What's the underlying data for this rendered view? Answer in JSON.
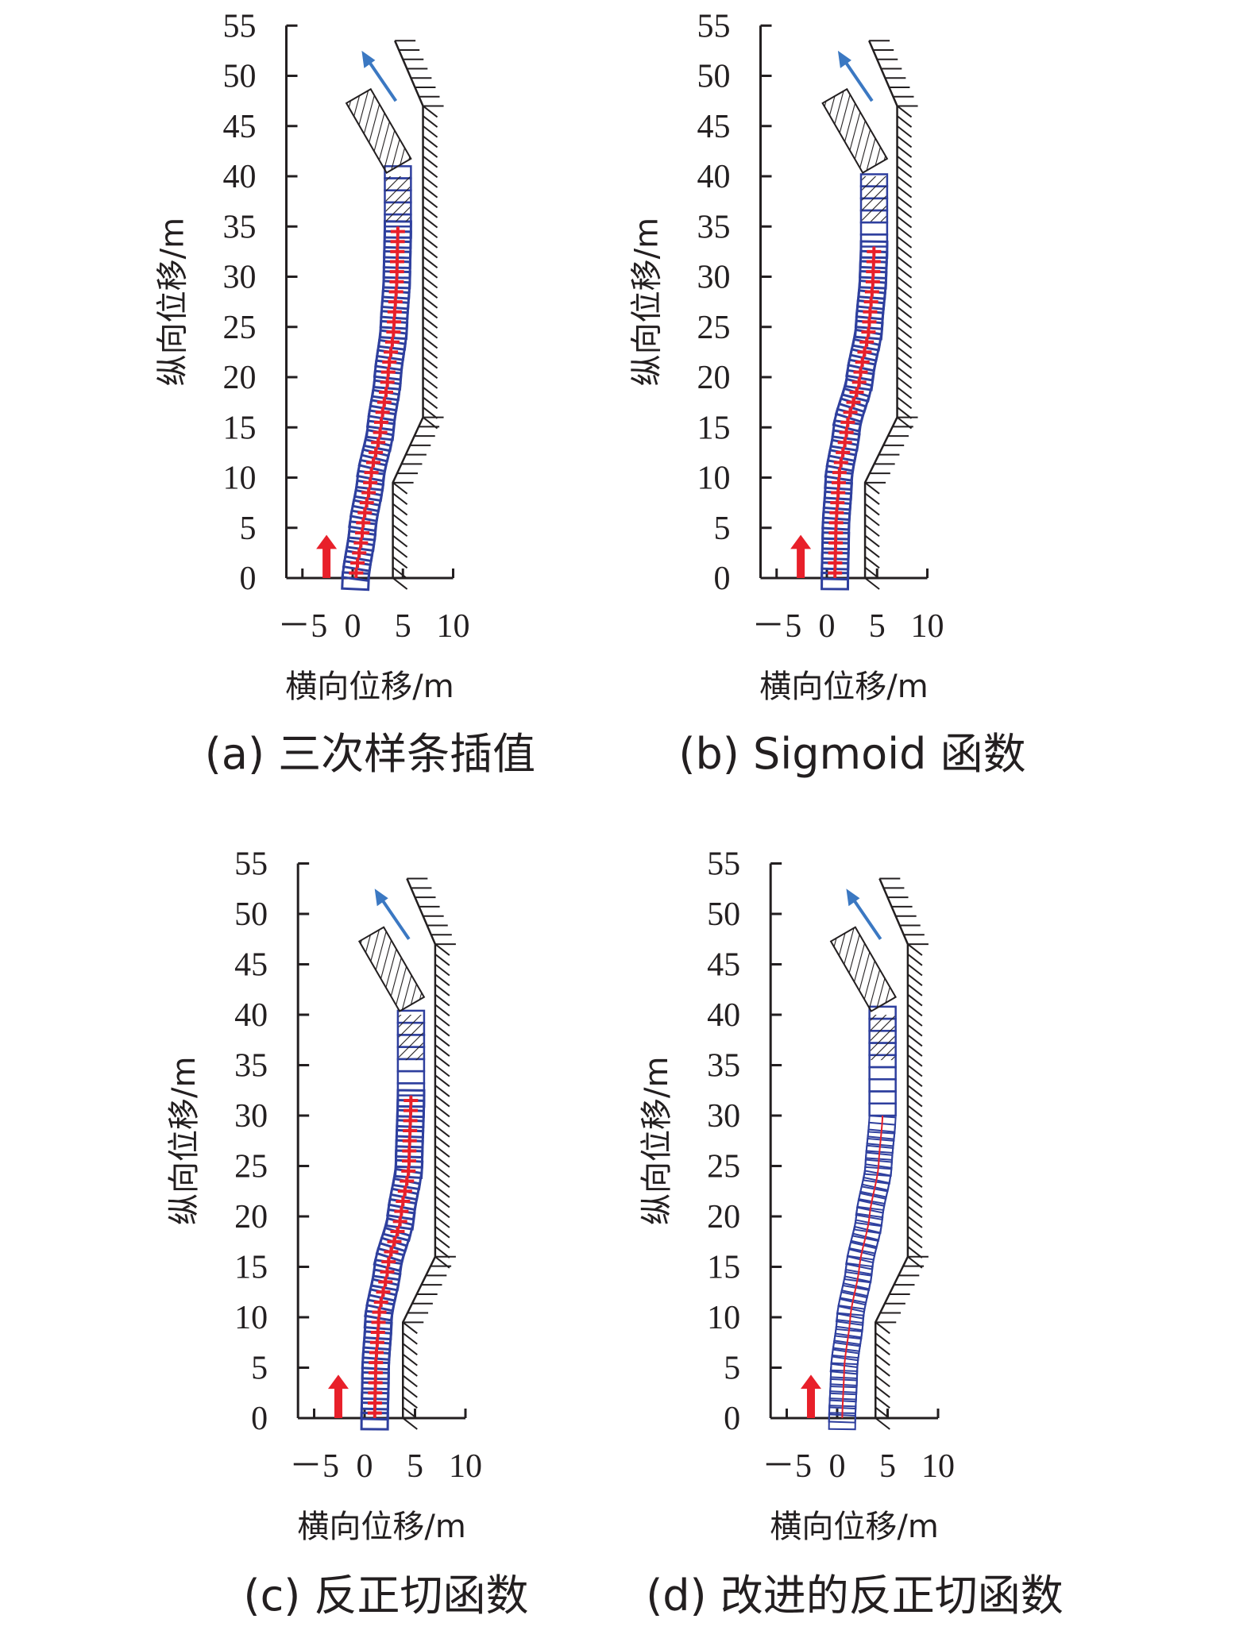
{
  "colors": {
    "axis": "#231f20",
    "vehicle_box": "#2e3f9e",
    "center_line": "#e8202a",
    "start_arrow": "#e8202a",
    "heading_arrow": "#3b78c2",
    "wall": "#231f20"
  },
  "chart_data": [
    {
      "type": "line",
      "title": "(a) 三次样条插值",
      "xlabel": "横向位移/m",
      "ylabel": "纵向位移/m",
      "xticks": [
        "－5",
        "0",
        "5",
        "10"
      ],
      "xtick_values": [
        -5,
        0,
        5,
        10
      ],
      "yticks": [
        "0",
        "5",
        "10",
        "15",
        "20",
        "25",
        "30",
        "35",
        "40",
        "45",
        "50",
        "55"
      ],
      "ytick_values": [
        0,
        5,
        10,
        15,
        20,
        25,
        30,
        35,
        40,
        45,
        50,
        55
      ],
      "xlim": [
        -6.6,
        10
      ],
      "ylim": [
        0,
        55
      ],
      "trajectory": [
        [
          0.3,
          0
        ],
        [
          1.0,
          5
        ],
        [
          1.8,
          10
        ],
        [
          2.8,
          15
        ],
        [
          3.5,
          20
        ],
        [
          4.1,
          25
        ],
        [
          4.4,
          30
        ],
        [
          4.5,
          35
        ]
      ],
      "markers": true,
      "wall": [
        [
          4.0,
          0
        ],
        [
          4.0,
          9.5
        ],
        [
          7.0,
          16
        ],
        [
          7.0,
          47
        ],
        [
          4.2,
          53.5
        ]
      ]
    },
    {
      "type": "line",
      "title": "(b) Sigmoid 函数",
      "xlabel": "横向位移/m",
      "ylabel": "纵向位移/m",
      "xticks": [
        "－5",
        "0",
        "5",
        "10"
      ],
      "xtick_values": [
        -5,
        0,
        5,
        10
      ],
      "yticks": [
        "0",
        "5",
        "10",
        "15",
        "20",
        "25",
        "30",
        "35",
        "40",
        "45",
        "50",
        "55"
      ],
      "ytick_values": [
        0,
        5,
        10,
        15,
        20,
        25,
        30,
        35,
        40,
        45,
        50,
        55
      ],
      "xlim": [
        -6.6,
        10
      ],
      "ylim": [
        0,
        55
      ],
      "trajectory": [
        [
          0.8,
          0
        ],
        [
          0.9,
          5
        ],
        [
          1.2,
          10
        ],
        [
          2.0,
          15
        ],
        [
          3.3,
          20
        ],
        [
          4.2,
          25
        ],
        [
          4.6,
          30
        ],
        [
          4.7,
          33
        ]
      ],
      "markers": true,
      "wall": [
        [
          3.8,
          0
        ],
        [
          3.8,
          9.5
        ],
        [
          7.0,
          16
        ],
        [
          7.0,
          47
        ],
        [
          4.2,
          53.5
        ]
      ]
    },
    {
      "type": "line",
      "title": "(c) 反正切函数",
      "xlabel": "横向位移/m",
      "ylabel": "纵向位移/m",
      "xticks": [
        "－5",
        "0",
        "5",
        "10"
      ],
      "xtick_values": [
        -5,
        0,
        5,
        10
      ],
      "yticks": [
        "0",
        "5",
        "10",
        "15",
        "20",
        "25",
        "30",
        "35",
        "40",
        "45",
        "50",
        "55"
      ],
      "ytick_values": [
        0,
        5,
        10,
        15,
        20,
        25,
        30,
        35,
        40,
        45,
        50,
        55
      ],
      "xlim": [
        -6.6,
        10
      ],
      "ylim": [
        0,
        55
      ],
      "trajectory": [
        [
          1.0,
          0
        ],
        [
          1.1,
          5
        ],
        [
          1.4,
          10
        ],
        [
          2.3,
          15
        ],
        [
          3.6,
          20
        ],
        [
          4.4,
          25
        ],
        [
          4.6,
          32
        ]
      ],
      "markers": true,
      "wall": [
        [
          3.8,
          0
        ],
        [
          3.8,
          9.5
        ],
        [
          7.0,
          16
        ],
        [
          7.0,
          47
        ],
        [
          4.2,
          53.5
        ]
      ]
    },
    {
      "type": "line",
      "title": "(d) 改进的反正切函数",
      "xlabel": "横向位移/m",
      "ylabel": "纵向位移/m",
      "xticks": [
        "－5",
        "0",
        "5",
        "10"
      ],
      "xtick_values": [
        -5,
        0,
        5,
        10
      ],
      "yticks": [
        "0",
        "5",
        "10",
        "15",
        "20",
        "25",
        "30",
        "35",
        "40",
        "45",
        "50",
        "55"
      ],
      "ytick_values": [
        0,
        5,
        10,
        15,
        20,
        25,
        30,
        35,
        40,
        45,
        50,
        55
      ],
      "xlim": [
        -6.6,
        10
      ],
      "ylim": [
        0,
        55
      ],
      "trajectory": [
        [
          0.5,
          0
        ],
        [
          0.7,
          5
        ],
        [
          1.3,
          10
        ],
        [
          2.2,
          15
        ],
        [
          3.2,
          20
        ],
        [
          4.1,
          25
        ],
        [
          4.5,
          30
        ]
      ],
      "markers": false,
      "wall": [
        [
          3.8,
          0
        ],
        [
          3.8,
          9.5
        ],
        [
          7.0,
          16
        ],
        [
          7.0,
          47
        ],
        [
          4.2,
          53.5
        ]
      ]
    }
  ]
}
